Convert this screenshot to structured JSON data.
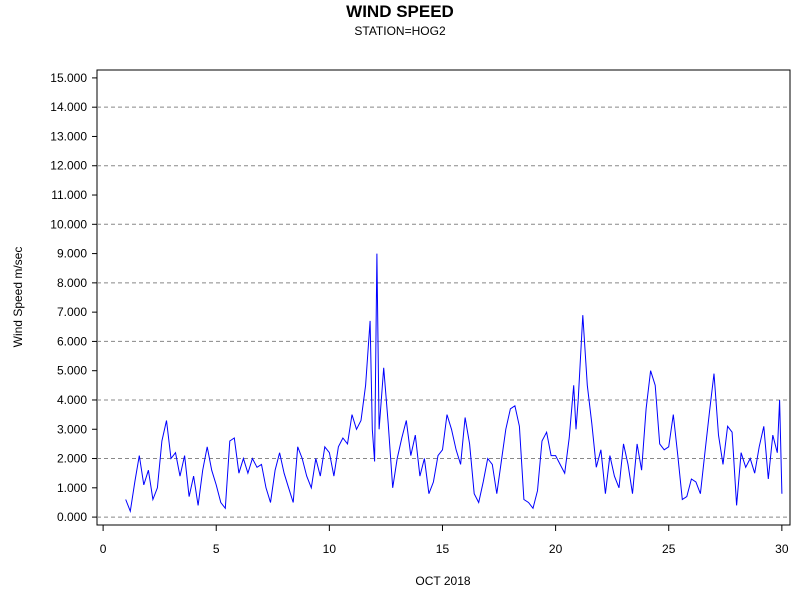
{
  "chart_data": {
    "type": "line",
    "title": "WIND SPEED",
    "subtitle": "STATION=HOG2",
    "x_label": "OCT 2018",
    "y_label": "Wind Speed m/sec",
    "xlim": [
      -0.27,
      30.36
    ],
    "ylim": [
      -0.27,
      15.27
    ],
    "xticks": [
      0,
      5,
      10,
      15,
      20,
      25,
      30
    ],
    "yticks": [
      {
        "value": 0,
        "label": "0.000"
      },
      {
        "value": 1,
        "label": "1.000"
      },
      {
        "value": 2,
        "label": "2.000"
      },
      {
        "value": 3,
        "label": "3.000"
      },
      {
        "value": 4,
        "label": "4.000"
      },
      {
        "value": 5,
        "label": "5.000"
      },
      {
        "value": 6,
        "label": "6.000"
      },
      {
        "value": 7,
        "label": "7.000"
      },
      {
        "value": 8,
        "label": "8.000"
      },
      {
        "value": 9,
        "label": "9.000"
      },
      {
        "value": 10,
        "label": "10.000"
      },
      {
        "value": 11,
        "label": "11.000"
      },
      {
        "value": 12,
        "label": "12.000"
      },
      {
        "value": 13,
        "label": "13.000"
      },
      {
        "value": 14,
        "label": "14.000"
      },
      {
        "value": 15,
        "label": "15.000"
      }
    ],
    "grid_y": [
      0,
      2,
      4,
      6,
      8,
      10,
      12,
      14
    ],
    "color": "#0000ff",
    "x": [
      1.0,
      1.2,
      1.4,
      1.6,
      1.8,
      2.0,
      2.2,
      2.4,
      2.6,
      2.8,
      3.0,
      3.2,
      3.4,
      3.6,
      3.8,
      4.0,
      4.2,
      4.4,
      4.6,
      4.8,
      5.0,
      5.2,
      5.4,
      5.6,
      5.8,
      6.0,
      6.2,
      6.4,
      6.6,
      6.8,
      7.0,
      7.2,
      7.4,
      7.6,
      7.8,
      8.0,
      8.2,
      8.4,
      8.6,
      8.8,
      9.0,
      9.2,
      9.4,
      9.6,
      9.8,
      10.0,
      10.2,
      10.4,
      10.6,
      10.8,
      11.0,
      11.2,
      11.4,
      11.6,
      11.8,
      11.9,
      12.0,
      12.1,
      12.2,
      12.4,
      12.6,
      12.8,
      13.0,
      13.2,
      13.4,
      13.6,
      13.8,
      14.0,
      14.2,
      14.4,
      14.6,
      14.8,
      15.0,
      15.2,
      15.4,
      15.6,
      15.8,
      16.0,
      16.2,
      16.4,
      16.6,
      16.8,
      17.0,
      17.2,
      17.4,
      17.6,
      17.8,
      18.0,
      18.2,
      18.4,
      18.6,
      18.8,
      19.0,
      19.2,
      19.4,
      19.6,
      19.8,
      20.0,
      20.2,
      20.4,
      20.6,
      20.8,
      20.9,
      21.0,
      21.2,
      21.4,
      21.6,
      21.8,
      22.0,
      22.2,
      22.4,
      22.6,
      22.8,
      23.0,
      23.2,
      23.4,
      23.6,
      23.8,
      24.0,
      24.2,
      24.4,
      24.6,
      24.8,
      25.0,
      25.2,
      25.4,
      25.6,
      25.8,
      26.0,
      26.2,
      26.4,
      26.6,
      26.8,
      27.0,
      27.2,
      27.4,
      27.6,
      27.8,
      28.0,
      28.2,
      28.4,
      28.6,
      28.8,
      29.0,
      29.2,
      29.4,
      29.6,
      29.8,
      29.9,
      30.0
    ],
    "values": [
      0.6,
      0.2,
      1.2,
      2.1,
      1.1,
      1.6,
      0.6,
      1.0,
      2.6,
      3.3,
      2.0,
      2.2,
      1.4,
      2.1,
      0.7,
      1.4,
      0.4,
      1.6,
      2.4,
      1.6,
      1.1,
      0.5,
      0.3,
      2.6,
      2.7,
      1.5,
      2.0,
      1.5,
      2.0,
      1.7,
      1.8,
      1.0,
      0.5,
      1.6,
      2.2,
      1.5,
      1.0,
      0.5,
      2.4,
      2.0,
      1.4,
      1.0,
      2.0,
      1.4,
      2.4,
      2.2,
      1.4,
      2.4,
      2.7,
      2.5,
      3.5,
      3.0,
      3.3,
      4.5,
      6.7,
      3.0,
      1.9,
      9.0,
      3.0,
      5.1,
      3.2,
      1.0,
      2.0,
      2.7,
      3.3,
      2.1,
      2.8,
      1.4,
      2.0,
      0.8,
      1.2,
      2.1,
      2.3,
      3.5,
      3.0,
      2.3,
      1.8,
      3.4,
      2.5,
      0.8,
      0.5,
      1.2,
      2.0,
      1.8,
      0.8,
      1.9,
      3.0,
      3.7,
      3.8,
      3.1,
      0.6,
      0.5,
      0.3,
      0.9,
      2.6,
      2.9,
      2.1,
      2.1,
      1.8,
      1.5,
      2.7,
      4.5,
      3.0,
      4.0,
      6.9,
      4.5,
      3.2,
      1.7,
      2.3,
      0.8,
      2.1,
      1.4,
      1.0,
      2.5,
      1.8,
      0.8,
      2.5,
      1.6,
      3.7,
      5.0,
      4.5,
      2.5,
      2.3,
      2.4,
      3.5,
      2.1,
      0.6,
      0.7,
      1.3,
      1.2,
      0.8,
      2.2,
      3.6,
      4.9,
      2.8,
      1.8,
      3.1,
      2.9,
      0.4,
      2.2,
      1.7,
      2.0,
      1.5,
      2.4,
      3.1,
      1.3,
      2.8,
      2.2,
      4.0,
      0.8
    ]
  }
}
